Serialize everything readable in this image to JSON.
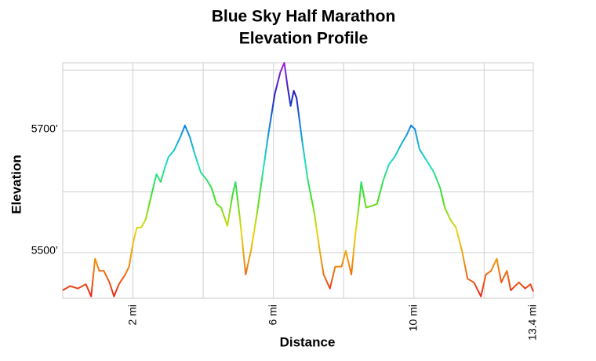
{
  "chart_data": {
    "type": "line",
    "title": "Blue Sky Half Marathon",
    "subtitle": "Elevation Profile",
    "x_label": "Distance",
    "y_label": "Elevation",
    "xlim": [
      0,
      13.4
    ],
    "ylim": [
      5425,
      5812
    ],
    "xticks": [
      {
        "value": 2,
        "label": "2 mi"
      },
      {
        "value": 4,
        "label": null
      },
      {
        "value": 6,
        "label": "6 mi"
      },
      {
        "value": 8,
        "label": null
      },
      {
        "value": 10,
        "label": "10 mi"
      },
      {
        "value": 12,
        "label": null
      },
      {
        "value": 13.4,
        "label": "13.4 mi"
      }
    ],
    "yticks": [
      {
        "value": 5500,
        "label": "5500’"
      },
      {
        "value": 5600,
        "label": null
      },
      {
        "value": 5700,
        "label": "5700’"
      },
      {
        "value": 5800,
        "label": null
      }
    ],
    "grid": true,
    "colorscale": [
      "#e8201a",
      "#f08a10",
      "#e8d810",
      "#40e020",
      "#20e0c0",
      "#1090e0",
      "#2020c0",
      "#a020e0"
    ],
    "x": [
      0,
      0.21,
      0.43,
      0.66,
      0.81,
      0.92,
      1.04,
      1.17,
      1.33,
      1.46,
      1.6,
      1.78,
      1.89,
      2.0,
      2.11,
      2.23,
      2.36,
      2.49,
      2.67,
      2.79,
      2.9,
      3.01,
      3.17,
      3.35,
      3.48,
      3.62,
      3.75,
      3.93,
      4.11,
      4.24,
      4.38,
      4.51,
      4.69,
      4.83,
      4.92,
      5.05,
      5.21,
      5.36,
      5.54,
      5.7,
      5.86,
      6.04,
      6.2,
      6.31,
      6.4,
      6.49,
      6.58,
      6.66,
      6.82,
      6.98,
      7.16,
      7.32,
      7.43,
      7.61,
      7.76,
      7.94,
      8.06,
      8.22,
      8.33,
      8.44,
      8.5,
      8.64,
      8.82,
      8.95,
      9.13,
      9.29,
      9.45,
      9.63,
      9.8,
      9.92,
      10.03,
      10.16,
      10.3,
      10.43,
      10.57,
      10.75,
      10.88,
      11.04,
      11.2,
      11.37,
      11.53,
      11.71,
      11.91,
      12.05,
      12.2,
      12.36,
      12.49,
      12.65,
      12.76,
      12.99,
      13.17,
      13.32,
      13.4
    ],
    "values": [
      5438,
      5445,
      5441,
      5448,
      5428,
      5490,
      5470,
      5470,
      5451,
      5428,
      5448,
      5464,
      5477,
      5515,
      5541,
      5541,
      5554,
      5586,
      5629,
      5616,
      5638,
      5657,
      5668,
      5690,
      5709,
      5690,
      5664,
      5632,
      5619,
      5606,
      5580,
      5574,
      5544,
      5593,
      5616,
      5554,
      5464,
      5503,
      5567,
      5632,
      5696,
      5761,
      5797,
      5812,
      5774,
      5741,
      5766,
      5754,
      5683,
      5619,
      5567,
      5503,
      5464,
      5441,
      5477,
      5477,
      5503,
      5464,
      5528,
      5580,
      5616,
      5574,
      5577,
      5580,
      5619,
      5645,
      5657,
      5677,
      5694,
      5709,
      5703,
      5670,
      5657,
      5645,
      5632,
      5606,
      5574,
      5554,
      5541,
      5503,
      5457,
      5451,
      5428,
      5464,
      5470,
      5490,
      5451,
      5470,
      5438,
      5451,
      5441,
      5448,
      5436
    ]
  }
}
